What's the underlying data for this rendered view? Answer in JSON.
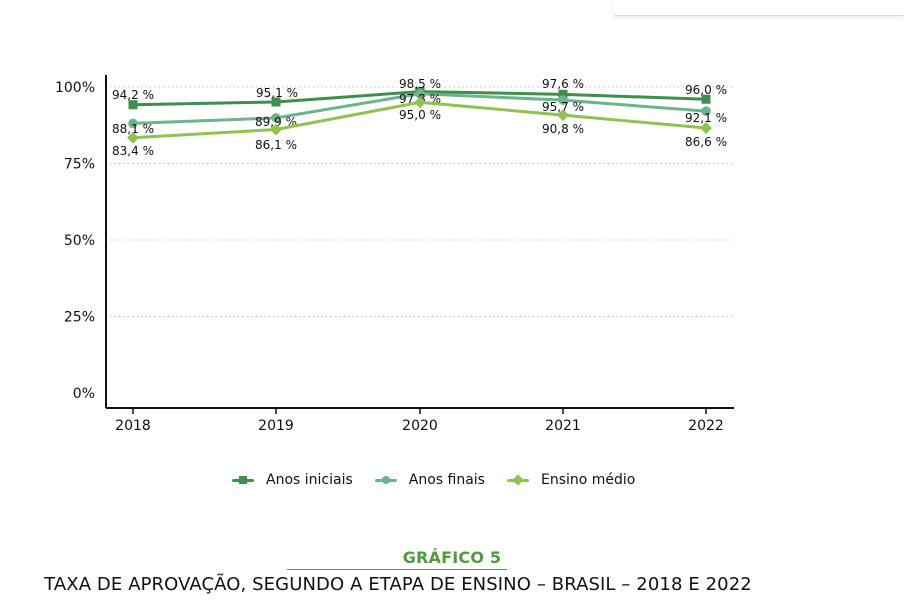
{
  "chart_data": {
    "type": "line",
    "categories": [
      "2018",
      "2019",
      "2020",
      "2021",
      "2022"
    ],
    "y_ticks": [
      "0%",
      "25%",
      "50%",
      "75%",
      "100%"
    ],
    "ylim": [
      0,
      100
    ],
    "grid": true,
    "legend_position": "bottom",
    "series": [
      {
        "name": "Anos iniciais",
        "color": "#3d8f4b",
        "marker": "square",
        "values": [
          94.2,
          95.1,
          98.5,
          97.6,
          96.0
        ],
        "labels": [
          "94,2 %",
          "95,1 %",
          "98,5 %",
          "97,6 %",
          "96,0 %"
        ]
      },
      {
        "name": "Anos finais",
        "color": "#6cb48b",
        "marker": "circle",
        "values": [
          88.1,
          89.9,
          97.8,
          95.7,
          92.1
        ],
        "labels": [
          "88,1 %",
          "89,9 %",
          "97,8 %",
          "95,7 %",
          "92,1 %"
        ]
      },
      {
        "name": "Ensino médio",
        "color": "#8fc24f",
        "marker": "diamond",
        "values": [
          83.4,
          86.1,
          95.0,
          90.8,
          86.6
        ],
        "labels": [
          "83,4 %",
          "86,1 %",
          "95,0 %",
          "90,8 %",
          "86,6 %"
        ]
      }
    ]
  },
  "caption": {
    "title": "GRÁFICO 5",
    "subtitle": "TAXA DE APROVAÇÃO, SEGUNDO A ETAPA DE ENSINO – BRASIL – 2018 E 2022"
  }
}
